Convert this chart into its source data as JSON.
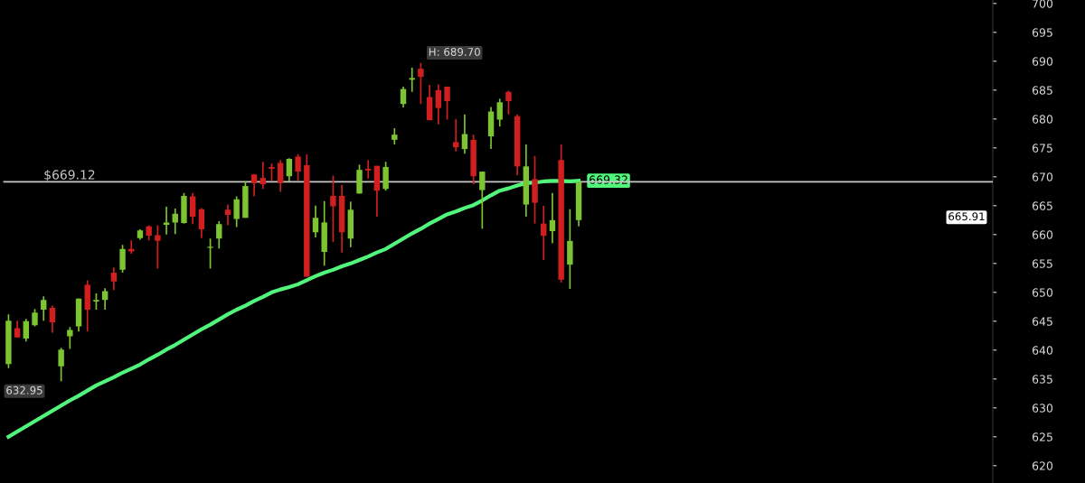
{
  "chart_data": {
    "type": "candlestick",
    "categories": [
      null,
      null,
      null,
      null,
      null,
      null,
      null,
      null,
      null,
      null,
      null,
      null,
      null,
      null,
      null,
      null,
      null,
      null,
      null,
      null,
      null,
      null,
      null,
      null,
      null,
      null,
      null,
      null,
      null,
      null,
      null,
      null,
      null,
      null,
      null,
      null,
      null,
      null,
      null,
      null,
      null,
      null,
      null,
      null,
      null,
      null,
      null,
      null,
      null,
      null,
      null,
      null,
      null,
      null,
      null,
      null,
      null,
      null,
      null,
      null,
      null,
      null,
      null,
      null,
      null,
      null
    ],
    "ohlc": [
      [
        637.6,
        646.2,
        636.9,
        645.1
      ],
      [
        643.8,
        645.1,
        642.2,
        642.2
      ],
      [
        642.0,
        645.4,
        641.5,
        645.0
      ],
      [
        644.3,
        647.1,
        644.1,
        646.5
      ],
      [
        647.0,
        649.3,
        645.1,
        648.7
      ],
      [
        647.3,
        647.7,
        643.0,
        644.8
      ],
      [
        637.2,
        640.4,
        634.6,
        640.1
      ],
      [
        642.4,
        644.0,
        640.2,
        643.5
      ],
      [
        644.1,
        648.9,
        643.2,
        648.9
      ],
      [
        651.3,
        652.1,
        643.2,
        647.0
      ],
      [
        648.4,
        649.8,
        647.0,
        648.7
      ],
      [
        648.7,
        650.7,
        647.0,
        650.2
      ],
      [
        653.4,
        654.3,
        650.4,
        651.9
      ],
      [
        653.9,
        658.2,
        653.4,
        657.5
      ],
      [
        657.5,
        659.0,
        656.7,
        657.1
      ],
      [
        659.4,
        660.9,
        659.1,
        660.7
      ],
      [
        661.4,
        661.6,
        659.0,
        659.8
      ],
      [
        659.9,
        661.6,
        654.1,
        658.9
      ],
      [
        661.7,
        664.8,
        660.0,
        662.1
      ],
      [
        662.1,
        664.5,
        660.1,
        663.6
      ],
      [
        662.0,
        667.2,
        661.9,
        666.7
      ],
      [
        666.6,
        667.2,
        661.8,
        663.1
      ],
      [
        664.4,
        664.6,
        659.4,
        660.9
      ],
      [
        657.7,
        659.3,
        654.1,
        657.9
      ],
      [
        659.3,
        662.3,
        657.6,
        661.8
      ],
      [
        664.3,
        665.2,
        661.6,
        663.4
      ],
      [
        662.7,
        666.6,
        661.3,
        666.1
      ],
      [
        662.9,
        669.2,
        662.9,
        668.4
      ],
      [
        670.4,
        670.5,
        666.6,
        668.9
      ],
      [
        669.8,
        672.6,
        667.9,
        668.7
      ],
      [
        671.7,
        672.3,
        669.3,
        671.4
      ],
      [
        672.4,
        672.9,
        667.4,
        668.9
      ],
      [
        670.1,
        673.2,
        669.2,
        673.1
      ],
      [
        673.5,
        673.9,
        669.3,
        670.9
      ],
      [
        672.0,
        673.9,
        652.7,
        652.7
      ],
      [
        660.4,
        665.0,
        659.5,
        662.9
      ],
      [
        657.0,
        665.8,
        654.6,
        662.1
      ],
      [
        666.7,
        670.2,
        658.7,
        664.9
      ],
      [
        666.7,
        668.6,
        656.9,
        660.4
      ],
      [
        659.3,
        665.7,
        657.8,
        664.3
      ],
      [
        667.1,
        672.1,
        667.1,
        671.2
      ],
      [
        671.4,
        672.9,
        669.7,
        671.1
      ],
      [
        671.9,
        671.9,
        663.1,
        667.6
      ],
      [
        667.9,
        672.6,
        667.6,
        671.7
      ],
      [
        676.4,
        678.4,
        675.6,
        677.3
      ],
      [
        682.6,
        685.6,
        682.0,
        685.2
      ],
      [
        686.8,
        688.9,
        684.7,
        687.1
      ],
      [
        688.7,
        689.7,
        682.6,
        687.3
      ],
      [
        683.8,
        685.9,
        679.8,
        679.8
      ],
      [
        685.0,
        686.0,
        679.1,
        681.9
      ],
      [
        685.6,
        685.6,
        679.9,
        683.1
      ],
      [
        676.0,
        680.0,
        674.4,
        675.1
      ],
      [
        674.8,
        680.8,
        674.0,
        677.4
      ],
      [
        676.4,
        677.3,
        668.7,
        670.1
      ],
      [
        667.7,
        670.9,
        661.0,
        670.9
      ],
      [
        677.0,
        682.1,
        674.8,
        681.3
      ],
      [
        679.9,
        683.5,
        678.7,
        682.9
      ],
      [
        684.7,
        684.9,
        680.8,
        683.1
      ],
      [
        680.5,
        680.8,
        670.3,
        671.8
      ],
      [
        665.2,
        675.6,
        663.1,
        671.8
      ],
      [
        669.6,
        673.6,
        661.9,
        665.5
      ],
      [
        661.9,
        665.0,
        655.6,
        659.8
      ],
      [
        660.6,
        667.2,
        658.5,
        662.5
      ],
      [
        672.9,
        675.6,
        651.7,
        652.2
      ],
      [
        654.8,
        664.4,
        650.6,
        658.9
      ],
      [
        662.5,
        669.2,
        661.4,
        669.1
      ]
    ],
    "colors": [
      "#7cc431",
      "#d11f1f",
      "#7cc431",
      "#7cc431",
      "#7cc431",
      "#d11f1f",
      "#7cc431",
      "#7cc431",
      "#7cc431",
      "#d11f1f",
      "#7cc431",
      "#7cc431",
      "#d11f1f",
      "#7cc431",
      "#d11f1f",
      "#7cc431",
      "#d11f1f",
      "#d11f1f",
      "#7cc431",
      "#7cc431",
      "#7cc431",
      "#d11f1f",
      "#d11f1f",
      "#7cc431",
      "#7cc431",
      "#d11f1f",
      "#7cc431",
      "#7cc431",
      "#d11f1f",
      "#d11f1f",
      "#d11f1f",
      "#d11f1f",
      "#7cc431",
      "#d11f1f",
      "#d11f1f",
      "#7cc431",
      "#7cc431",
      "#d11f1f",
      "#d11f1f",
      "#7cc431",
      "#7cc431",
      "#d11f1f",
      "#d11f1f",
      "#7cc431",
      "#7cc431",
      "#7cc431",
      "#7cc431",
      "#d11f1f",
      "#d11f1f",
      "#d11f1f",
      "#d11f1f",
      "#d11f1f",
      "#7cc431",
      "#d11f1f",
      "#7cc431",
      "#7cc431",
      "#7cc431",
      "#d11f1f",
      "#d11f1f",
      "#7cc431",
      "#d11f1f",
      "#d11f1f",
      "#7cc431",
      "#d11f1f",
      "#7cc431",
      "#7cc431"
    ],
    "series": [
      {
        "type": "line",
        "color": "#52f57c",
        "values": [
          625.0,
          625.9,
          626.8,
          627.7,
          628.6,
          629.5,
          630.4,
          631.3,
          632.1,
          633.0,
          633.9,
          634.6,
          635.3,
          636.1,
          636.8,
          637.5,
          638.4,
          639.2,
          640.1,
          640.9,
          641.8,
          642.7,
          643.6,
          644.4,
          645.3,
          646.2,
          647.0,
          647.7,
          648.5,
          649.2,
          650.0,
          650.5,
          650.9,
          651.4,
          652.1,
          652.8,
          653.4,
          653.9,
          654.5,
          655.0,
          655.6,
          656.2,
          656.9,
          657.5,
          658.4,
          659.3,
          660.2,
          661.0,
          661.9,
          662.7,
          663.5,
          664.0,
          664.6,
          665.1,
          665.9,
          666.8,
          667.6,
          668.0,
          668.5,
          668.9,
          669.0,
          669.2,
          669.3,
          669.3,
          669.2,
          669.32
        ],
        "value_labels": [
          null,
          null,
          null,
          null,
          null,
          null,
          null,
          null,
          null,
          null,
          null,
          null,
          null,
          null,
          null,
          null,
          null,
          null,
          null,
          null,
          null,
          null,
          null,
          null,
          null,
          null,
          null,
          null,
          null,
          null,
          null,
          null,
          null,
          null,
          null,
          null,
          null,
          null,
          null,
          null,
          null,
          null,
          null,
          null,
          null,
          null,
          null,
          null,
          null,
          null,
          null,
          null,
          null,
          null,
          null,
          null,
          null,
          null,
          null,
          null,
          null,
          null,
          null,
          null,
          null,
          "669.32"
        ]
      }
    ],
    "ref_lines": [
      {
        "axis": "y",
        "value": 669.12,
        "label": "$669.12",
        "color": "#c8c8c8"
      }
    ],
    "annotations": [
      "H: 689.70",
      "632.95",
      "665.91"
    ],
    "ylim": [
      617,
      700.6
    ],
    "yticks": [
      620,
      625,
      630,
      635,
      640,
      645,
      650,
      655,
      660,
      665,
      670,
      675,
      680,
      685,
      690,
      695,
      700
    ],
    "grid": false,
    "legend": false
  }
}
